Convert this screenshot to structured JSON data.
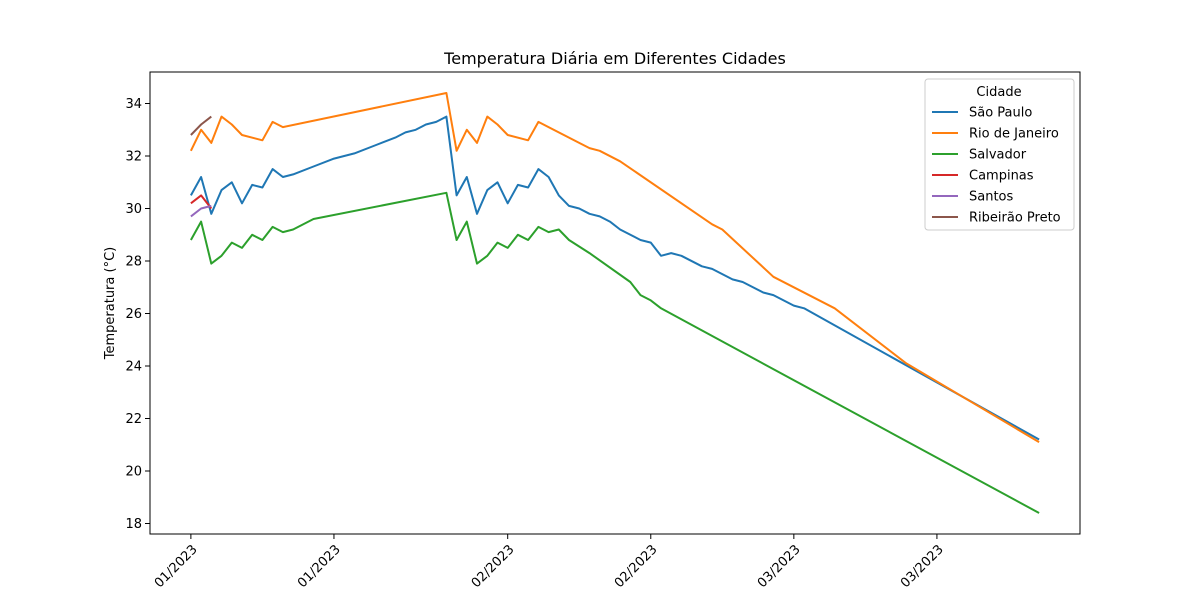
{
  "chart_data": {
    "type": "line",
    "title": "Temperatura Diária em Diferentes Cidades",
    "xlabel": "",
    "ylabel": "Temperatura (°C)",
    "ylim": [
      17.6,
      35.2
    ],
    "x_ticks": [
      "01/2023",
      "01/2023",
      "02/2023",
      "02/2023",
      "03/2023",
      "03/2023"
    ],
    "y_ticks": [
      18,
      20,
      22,
      24,
      26,
      28,
      30,
      32,
      34
    ],
    "grid": false,
    "legend": {
      "title": "Cidade",
      "position": "top-right"
    },
    "series": [
      {
        "name": "São Paulo",
        "color": "#1f77b4",
        "points": [
          [
            0,
            30.5
          ],
          [
            1,
            31.2
          ],
          [
            2,
            29.8
          ],
          [
            3,
            30.7
          ],
          [
            4,
            31.0
          ],
          [
            5,
            30.2
          ],
          [
            6,
            30.9
          ],
          [
            7,
            30.8
          ],
          [
            8,
            31.5
          ],
          [
            9,
            31.2
          ],
          [
            10,
            31.3
          ],
          [
            12,
            31.6
          ],
          [
            14,
            31.9
          ],
          [
            15,
            32.0
          ],
          [
            16,
            32.1
          ],
          [
            18,
            32.4
          ],
          [
            20,
            32.7
          ],
          [
            21,
            32.9
          ],
          [
            22,
            33.0
          ],
          [
            23,
            33.2
          ],
          [
            24,
            33.3
          ],
          [
            25,
            33.5
          ],
          [
            26,
            30.5
          ],
          [
            27,
            31.2
          ],
          [
            28,
            29.8
          ],
          [
            29,
            30.7
          ],
          [
            30,
            31.0
          ],
          [
            31,
            30.2
          ],
          [
            32,
            30.9
          ],
          [
            33,
            30.8
          ],
          [
            34,
            31.5
          ],
          [
            35,
            31.2
          ],
          [
            36,
            30.5
          ],
          [
            37,
            30.1
          ],
          [
            38,
            30.0
          ],
          [
            39,
            29.8
          ],
          [
            40,
            29.7
          ],
          [
            41,
            29.5
          ],
          [
            42,
            29.2
          ],
          [
            44,
            28.8
          ],
          [
            45,
            28.7
          ],
          [
            46,
            28.2
          ],
          [
            47,
            28.3
          ],
          [
            48,
            28.2
          ],
          [
            50,
            27.8
          ],
          [
            51,
            27.7
          ],
          [
            53,
            27.3
          ],
          [
            54,
            27.2
          ],
          [
            56,
            26.8
          ],
          [
            57,
            26.7
          ],
          [
            59,
            26.3
          ],
          [
            60,
            26.2
          ],
          [
            83,
            21.2
          ]
        ]
      },
      {
        "name": "Rio de Janeiro",
        "color": "#ff7f0e",
        "points": [
          [
            0,
            32.2
          ],
          [
            1,
            33.0
          ],
          [
            2,
            32.5
          ],
          [
            3,
            33.5
          ],
          [
            4,
            33.2
          ],
          [
            5,
            32.8
          ],
          [
            7,
            32.6
          ],
          [
            8,
            33.3
          ],
          [
            9,
            33.1
          ],
          [
            25,
            34.4
          ],
          [
            26,
            32.2
          ],
          [
            27,
            33.0
          ],
          [
            28,
            32.5
          ],
          [
            29,
            33.5
          ],
          [
            30,
            33.2
          ],
          [
            31,
            32.8
          ],
          [
            33,
            32.6
          ],
          [
            34,
            33.3
          ],
          [
            38,
            32.5
          ],
          [
            39,
            32.3
          ],
          [
            40,
            32.2
          ],
          [
            42,
            31.8
          ],
          [
            51,
            29.4
          ],
          [
            52,
            29.2
          ],
          [
            57,
            27.4
          ],
          [
            63,
            26.2
          ],
          [
            70,
            24.1
          ],
          [
            83,
            21.1
          ]
        ]
      },
      {
        "name": "Salvador",
        "color": "#2ca02c",
        "points": [
          [
            0,
            28.8
          ],
          [
            1,
            29.5
          ],
          [
            2,
            27.9
          ],
          [
            3,
            28.2
          ],
          [
            4,
            28.7
          ],
          [
            5,
            28.5
          ],
          [
            6,
            29.0
          ],
          [
            7,
            28.8
          ],
          [
            8,
            29.3
          ],
          [
            9,
            29.1
          ],
          [
            10,
            29.2
          ],
          [
            12,
            29.6
          ],
          [
            25,
            30.6
          ],
          [
            26,
            28.8
          ],
          [
            27,
            29.5
          ],
          [
            28,
            27.9
          ],
          [
            29,
            28.2
          ],
          [
            30,
            28.7
          ],
          [
            31,
            28.5
          ],
          [
            32,
            29.0
          ],
          [
            33,
            28.8
          ],
          [
            34,
            29.3
          ],
          [
            35,
            29.1
          ],
          [
            36,
            29.2
          ],
          [
            37,
            28.8
          ],
          [
            39,
            28.3
          ],
          [
            43,
            27.2
          ],
          [
            44,
            26.7
          ],
          [
            45,
            26.5
          ],
          [
            46,
            26.2
          ],
          [
            83,
            18.4
          ]
        ]
      },
      {
        "name": "Campinas",
        "color": "#d62728",
        "points": [
          [
            0,
            30.2
          ],
          [
            1,
            30.5
          ],
          [
            2,
            30.0
          ]
        ]
      },
      {
        "name": "Santos",
        "color": "#9467bd",
        "points": [
          [
            0,
            29.7
          ],
          [
            1,
            30.0
          ],
          [
            2,
            30.1
          ]
        ]
      },
      {
        "name": "Ribeirão Preto",
        "color": "#8c564b",
        "points": [
          [
            0,
            32.8
          ],
          [
            1,
            33.2
          ],
          [
            2,
            33.5
          ]
        ]
      }
    ]
  }
}
